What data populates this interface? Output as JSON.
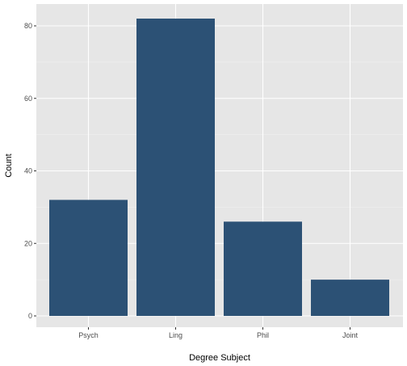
{
  "chart_data": {
    "type": "bar",
    "categories": [
      "Psych",
      "Ling",
      "Phil",
      "Joint"
    ],
    "values": [
      32,
      82,
      26,
      10
    ],
    "xlabel": "Degree Subject",
    "ylabel": "Count",
    "ylim": [
      0,
      86
    ],
    "yticks": [
      0,
      20,
      40,
      60,
      80
    ],
    "grid": true,
    "colors": {
      "bar": "#2c5175",
      "panel": "#e6e6e6",
      "grid_major": "#ffffff",
      "grid_minor": "#f1f1f1"
    }
  }
}
